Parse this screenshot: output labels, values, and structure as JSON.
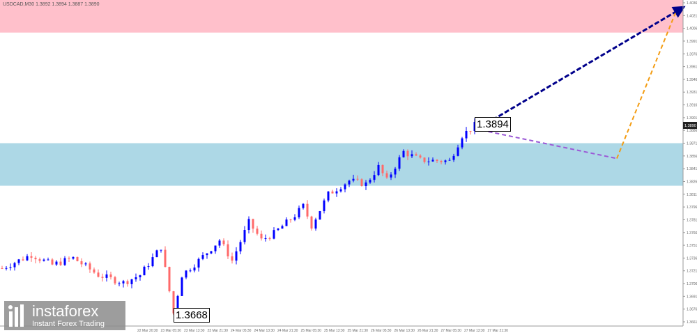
{
  "header": {
    "symbol_line": "USDCAD,M30  1.3892 1.3894 1.3887 1.3890"
  },
  "labels": {
    "high": "1.3894",
    "low": "1.3668",
    "current_price": "1.3890"
  },
  "logo": {
    "name": "instaforex",
    "tagline": "Instant Forex Trading"
  },
  "colors": {
    "resistance_zone": "#ffc0cb",
    "support_zone": "#add8e6",
    "bull": "#0000ff",
    "bear": "#ff6a6a",
    "main_forecast": "#00008b",
    "correction": "#9b59d6",
    "final": "#f39c12"
  },
  "chart_data": {
    "type": "candlestick",
    "title": "USDCAD,M30",
    "ylim": [
      1.3655,
      1.404
    ],
    "yticks": [
      "1.4036",
      "1.4021",
      "1.4006",
      "1.3991",
      "1.3976",
      "1.3961",
      "1.3946",
      "1.3931",
      "1.3916",
      "1.3901",
      "1.3886",
      "1.3871",
      "1.3856",
      "1.3841",
      "1.3826",
      "1.3811",
      "1.3796",
      "1.3781",
      "1.3766",
      "1.3751",
      "1.3736",
      "1.3721",
      "1.3706",
      "1.3691",
      "1.3676",
      "1.3661"
    ],
    "xticks": [
      "22 Mar 20:30",
      "23 Mar 05:30",
      "23 Mar 13:30",
      "23 Mar 21:30",
      "24 Mar 05:30",
      "24 Mar 13:30",
      "24 Mar 21:30",
      "25 Mar 05:30",
      "25 Mar 13:30",
      "25 Mar 21:30",
      "26 Mar 05:30",
      "26 Mar 13:30",
      "26 Mar 21:30",
      "27 Mar 05:30",
      "27 Mar 13:30",
      "27 Mar 21:30"
    ],
    "zones": [
      {
        "name": "resistance",
        "from": 1.4001,
        "to": 1.4045
      },
      {
        "name": "support",
        "from": 1.3821,
        "to": 1.3871
      }
    ],
    "price_path": [
      [
        0,
        1.3724
      ],
      [
        7,
        1.374
      ],
      [
        12,
        1.3728
      ],
      [
        17,
        1.3736
      ],
      [
        23,
        1.3716
      ],
      [
        29,
        1.3707
      ],
      [
        33,
        1.3716
      ],
      [
        38,
        1.3749
      ],
      [
        41,
        1.3671
      ],
      [
        43,
        1.3716
      ],
      [
        47,
        1.3733
      ],
      [
        52,
        1.3757
      ],
      [
        55,
        1.3733
      ],
      [
        59,
        1.3778
      ],
      [
        62,
        1.3757
      ],
      [
        65,
        1.3765
      ],
      [
        70,
        1.3786
      ],
      [
        72,
        1.3797
      ],
      [
        74,
        1.3774
      ],
      [
        78,
        1.3811
      ],
      [
        83,
        1.3827
      ],
      [
        87,
        1.3823
      ],
      [
        90,
        1.3843
      ],
      [
        92,
        1.3827
      ],
      [
        96,
        1.3861
      ],
      [
        100,
        1.3851
      ],
      [
        107,
        1.385
      ],
      [
        110,
        1.388
      ],
      [
        113,
        1.3892
      ]
    ],
    "forecast": [
      {
        "name": "main",
        "from": [
          113,
          1.3886
        ],
        "to": [
          163,
          1.4031
        ]
      },
      {
        "name": "correction",
        "from": [
          113,
          1.3888
        ],
        "to": [
          147,
          1.3853
        ]
      },
      {
        "name": "final",
        "from": [
          147,
          1.3853
        ],
        "to": [
          161,
          1.4024
        ]
      }
    ]
  }
}
